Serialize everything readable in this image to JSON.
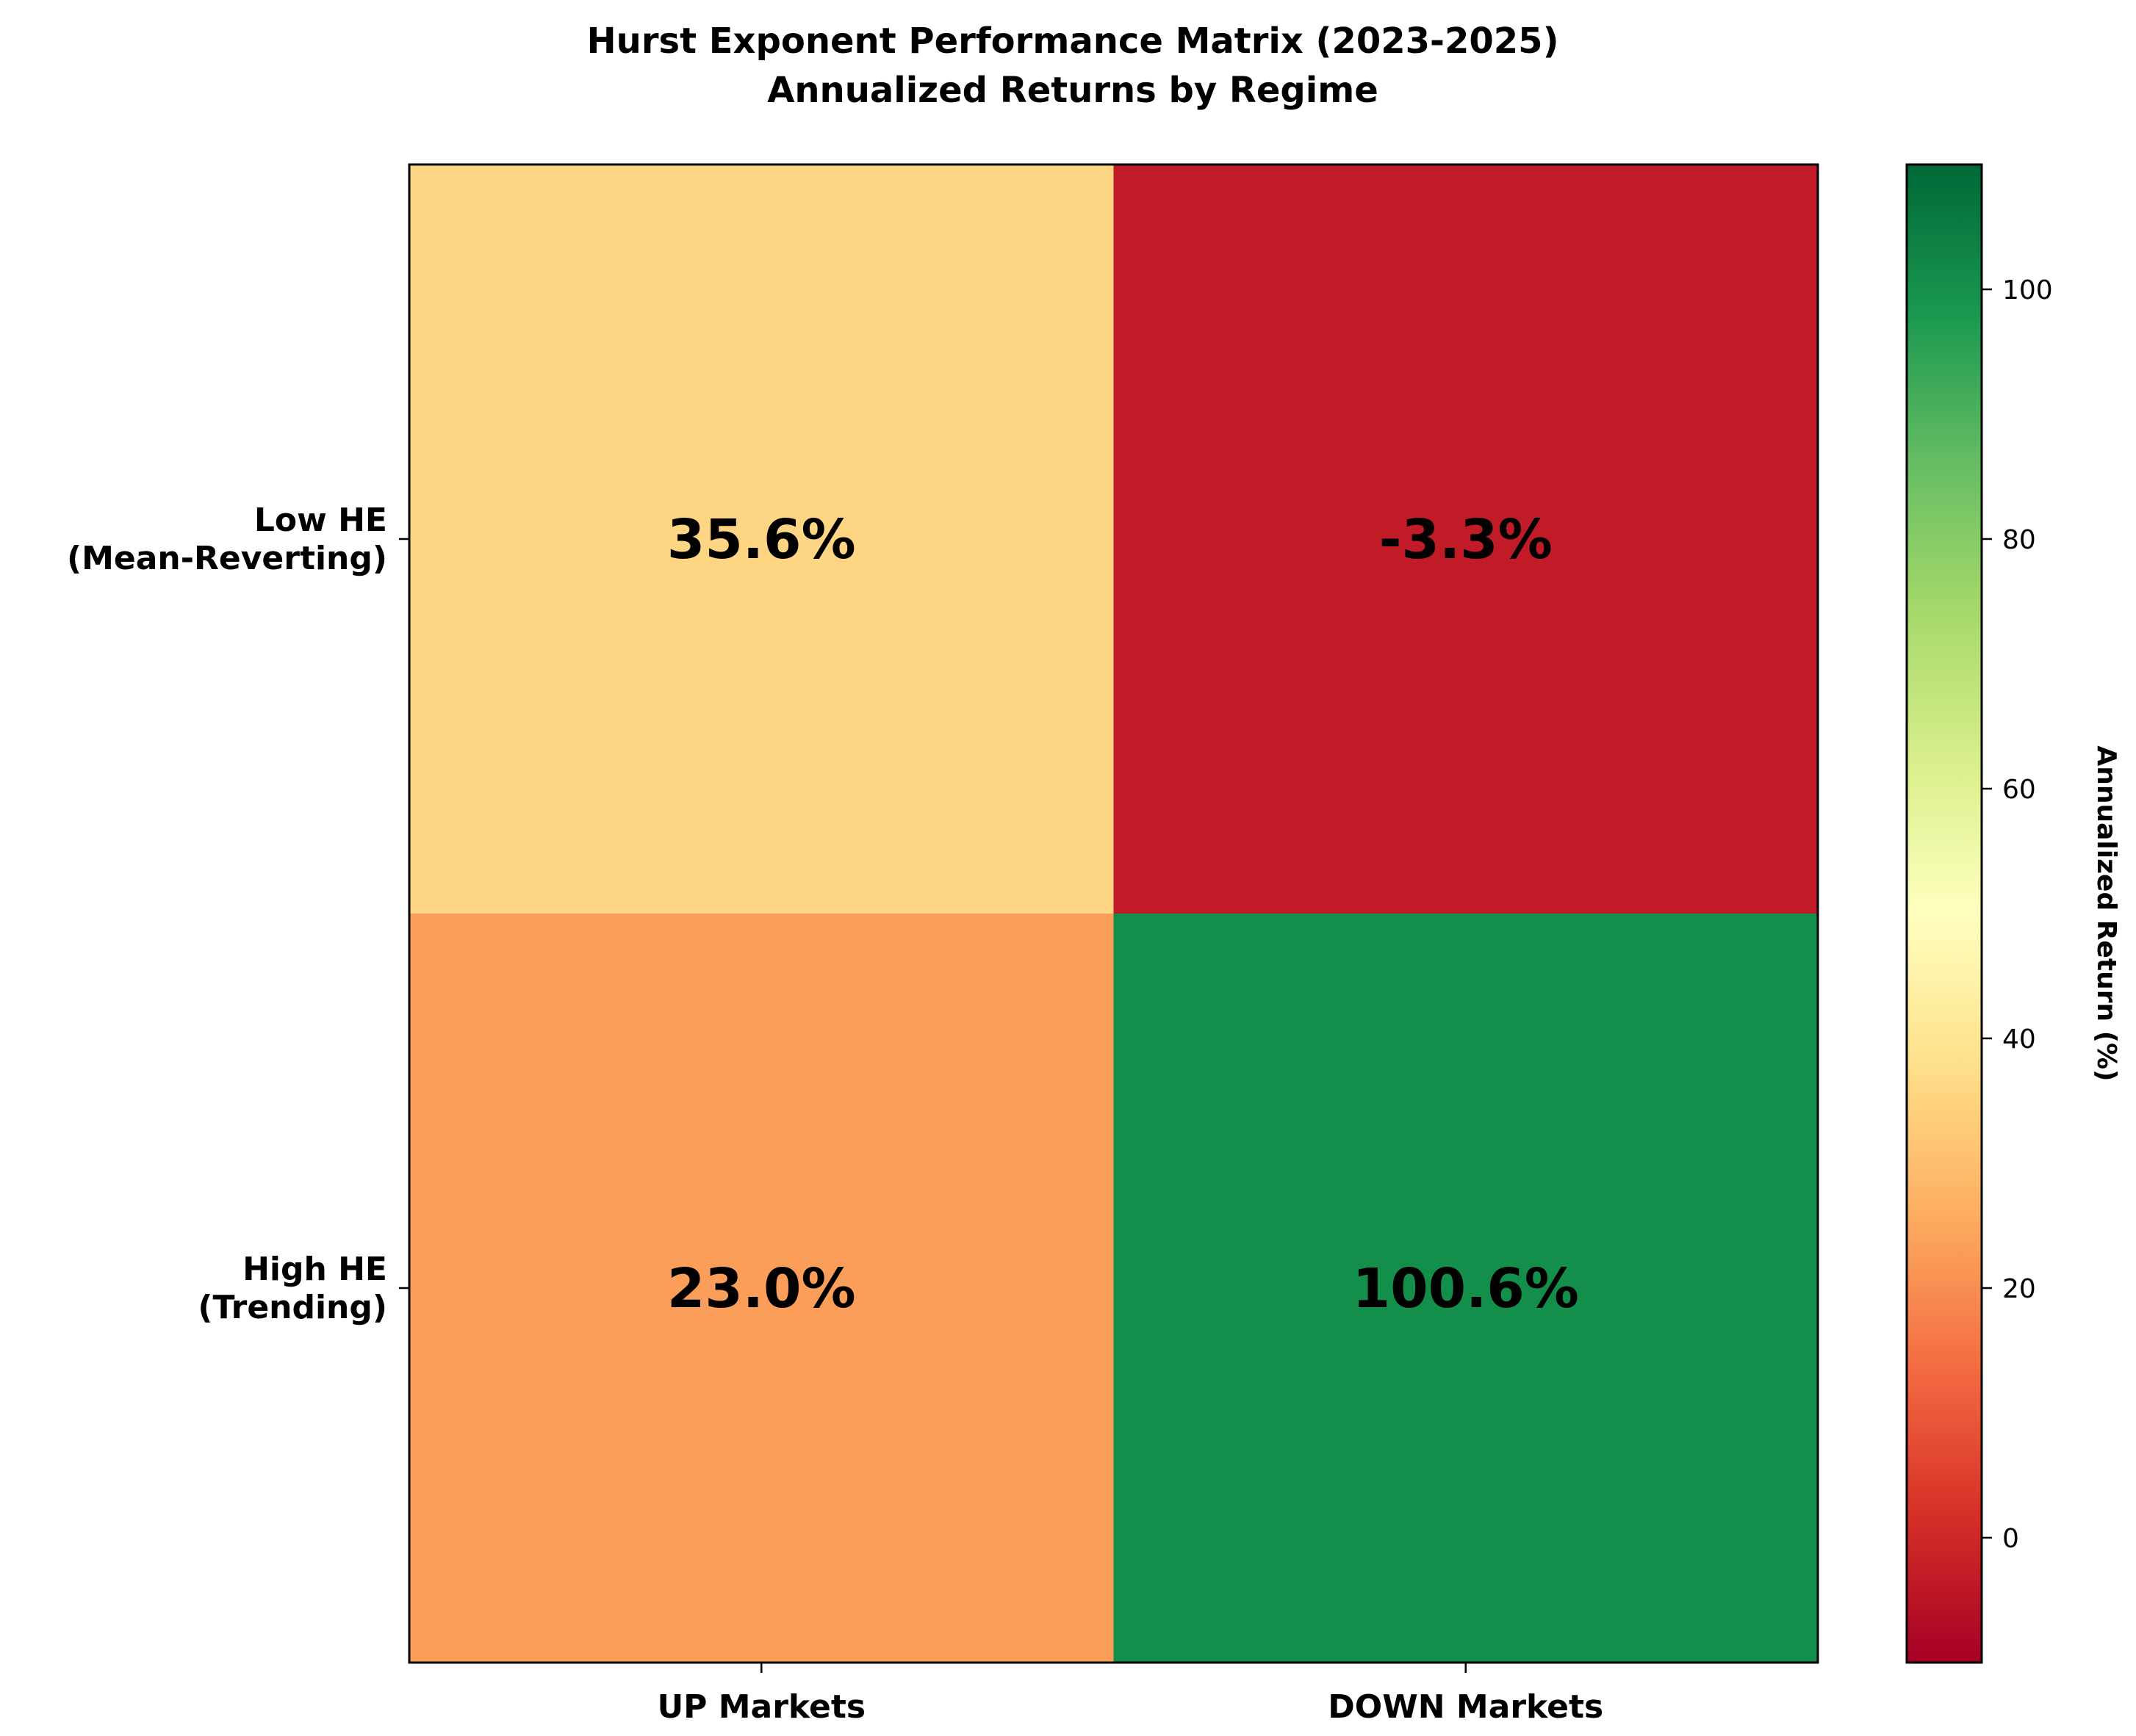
{
  "chart_data": {
    "type": "heatmap",
    "title": "Hurst Exponent Performance Matrix (2023-2025)",
    "subtitle": "Annualized Returns by Regime",
    "x_categories": [
      "UP Markets",
      "DOWN Markets"
    ],
    "y_categories": [
      [
        "Low HE",
        "(Mean-Reverting)"
      ],
      [
        "High HE",
        "(Trending)"
      ]
    ],
    "values": [
      [
        35.6,
        -3.3
      ],
      [
        23.0,
        100.6
      ]
    ],
    "value_labels": [
      [
        "35.6%",
        "-3.3%"
      ],
      [
        "23.0%",
        "100.6%"
      ]
    ],
    "colormap": "RdYlGn",
    "colorbar": {
      "label": "Annualized Return (%)",
      "vmin": -10,
      "vmax": 110,
      "ticks": [
        0,
        20,
        40,
        60,
        80,
        100
      ],
      "tick_labels": [
        "0",
        "20",
        "40",
        "60",
        "80",
        "100"
      ]
    },
    "grid": false
  }
}
